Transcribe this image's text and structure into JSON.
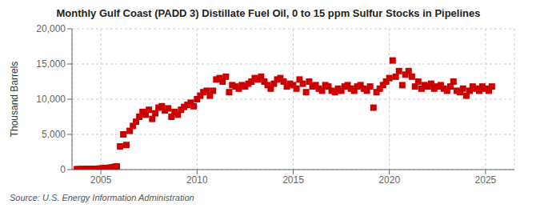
{
  "chart_data": {
    "type": "scatter",
    "title": "Monthly Gulf Coast (PADD 3) Distillate Fuel Oil, 0 to 15 ppm Sulfur Stocks in Pipelines",
    "ylabel": "Thousand Barrels",
    "annotations": [
      "Source: U.S. Energy Information Administration"
    ],
    "color": "#cc0000",
    "marker": "square",
    "grid": true,
    "xlim": [
      2003.5,
      2026.5
    ],
    "xticks": [
      2005,
      2010,
      2015,
      2020,
      2025
    ],
    "ylim": [
      0,
      20000
    ],
    "yticks": [
      0,
      {
        "value": 5000,
        "label": "5,000"
      },
      {
        "value": 10000,
        "label": "10,000"
      },
      {
        "value": 15000,
        "label": "15,000"
      },
      {
        "value": 20000,
        "label": "20,000"
      }
    ],
    "x": [
      2003.75,
      2003.83,
      2004.0,
      2004.08,
      2004.17,
      2004.25,
      2004.33,
      2004.42,
      2004.5,
      2004.58,
      2004.67,
      2004.75,
      2004.83,
      2004.92,
      2005.0,
      2005.08,
      2005.17,
      2005.25,
      2005.33,
      2005.42,
      2005.5,
      2005.58,
      2005.67,
      2005.75,
      2005.83,
      2006.0,
      2006.17,
      2006.33,
      2006.5,
      2006.67,
      2006.83,
      2007.0,
      2007.17,
      2007.33,
      2007.5,
      2007.67,
      2007.83,
      2008.0,
      2008.17,
      2008.33,
      2008.5,
      2008.67,
      2008.83,
      2009.0,
      2009.17,
      2009.33,
      2009.5,
      2009.67,
      2009.83,
      2010.0,
      2010.17,
      2010.33,
      2010.5,
      2010.67,
      2010.83,
      2011.0,
      2011.17,
      2011.33,
      2011.5,
      2011.67,
      2011.83,
      2012.0,
      2012.17,
      2012.33,
      2012.5,
      2012.67,
      2012.83,
      2013.0,
      2013.17,
      2013.33,
      2013.5,
      2013.67,
      2013.83,
      2014.0,
      2014.17,
      2014.33,
      2014.5,
      2014.67,
      2014.83,
      2015.0,
      2015.17,
      2015.33,
      2015.5,
      2015.67,
      2015.83,
      2016.0,
      2016.17,
      2016.33,
      2016.5,
      2016.67,
      2016.83,
      2017.0,
      2017.17,
      2017.33,
      2017.5,
      2017.67,
      2017.83,
      2018.0,
      2018.17,
      2018.33,
      2018.5,
      2018.67,
      2018.83,
      2019.0,
      2019.17,
      2019.33,
      2019.5,
      2019.67,
      2019.83,
      2020.0,
      2020.17,
      2020.33,
      2020.5,
      2020.67,
      2020.83,
      2021.0,
      2021.17,
      2021.33,
      2021.5,
      2021.67,
      2021.83,
      2022.0,
      2022.17,
      2022.33,
      2022.5,
      2022.67,
      2022.83,
      2023.0,
      2023.17,
      2023.33,
      2023.5,
      2023.67,
      2023.83,
      2024.0,
      2024.17,
      2024.33,
      2024.5,
      2024.67,
      2024.83,
      2025.0,
      2025.17,
      2025.33
    ],
    "values": [
      50,
      55,
      60,
      65,
      70,
      75,
      80,
      85,
      90,
      95,
      100,
      110,
      120,
      130,
      150,
      160,
      180,
      200,
      220,
      250,
      280,
      300,
      350,
      400,
      450,
      3300,
      5000,
      3500,
      5500,
      6200,
      6800,
      7500,
      8200,
      7800,
      8500,
      7200,
      8000,
      8800,
      9000,
      8400,
      8700,
      7500,
      8200,
      7800,
      8500,
      8900,
      9200,
      9500,
      9000,
      10000,
      10500,
      11000,
      11200,
      10500,
      11200,
      12800,
      13000,
      12500,
      13200,
      11000,
      12000,
      11800,
      11500,
      12000,
      11800,
      12200,
      12500,
      13000,
      12800,
      13200,
      12500,
      12000,
      11500,
      12200,
      12800,
      13000,
      12500,
      11800,
      12200,
      12000,
      11500,
      12800,
      12200,
      11000,
      12500,
      11800,
      12000,
      11500,
      11200,
      12000,
      11800,
      11200,
      11000,
      11500,
      11200,
      11800,
      12000,
      11500,
      11200,
      11800,
      12000,
      11500,
      11200,
      11800,
      8800,
      11000,
      11500,
      12000,
      12500,
      13000,
      15500,
      13200,
      14000,
      12000,
      13500,
      14000,
      13200,
      11800,
      12500,
      11500,
      12000,
      11800,
      12200,
      11500,
      11800,
      12000,
      11500,
      11200,
      11800,
      12500,
      11200,
      11000,
      11500,
      10500,
      11200,
      11800,
      11500,
      11200,
      11800,
      11500,
      11200,
      11800
    ]
  }
}
